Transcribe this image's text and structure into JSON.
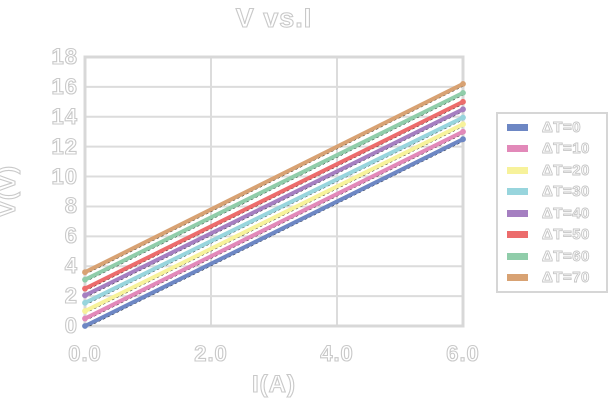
{
  "chart_data": {
    "type": "line",
    "title": "V vs.I",
    "xlabel": "I(A)",
    "ylabel": "V(V)",
    "xlim": [
      0,
      6
    ],
    "ylim": [
      0,
      18
    ],
    "x": [
      0,
      6
    ],
    "x_tick_labels": [
      "0.0",
      "2.0",
      "4.0",
      "6.0"
    ],
    "x_tick_values": [
      0,
      2,
      4,
      6
    ],
    "y_tick_labels": [
      "0",
      "2",
      "4",
      "6",
      "8",
      "10",
      "12",
      "14",
      "16",
      "18"
    ],
    "y_tick_values": [
      0,
      2,
      4,
      6,
      8,
      10,
      12,
      14,
      16,
      18
    ],
    "grid": true,
    "legend_position": "right",
    "series": [
      {
        "name": "ΔT=0",
        "color": "#6d87c4",
        "values": [
          0.0,
          12.5
        ]
      },
      {
        "name": "ΔT=10",
        "color": "#e289b9",
        "values": [
          0.5,
          13.0
        ]
      },
      {
        "name": "ΔT=20",
        "color": "#f7f29b",
        "values": [
          1.0,
          13.5
        ]
      },
      {
        "name": "ΔT=30",
        "color": "#98d5dd",
        "values": [
          1.55,
          13.95
        ]
      },
      {
        "name": "ΔT=40",
        "color": "#a57fc1",
        "values": [
          2.05,
          14.5
        ]
      },
      {
        "name": "ΔT=50",
        "color": "#ec6c6c",
        "values": [
          2.5,
          15.0
        ]
      },
      {
        "name": "ΔT=60",
        "color": "#90cdaa",
        "values": [
          3.1,
          15.6
        ]
      },
      {
        "name": "ΔT=70",
        "color": "#d8a273",
        "values": [
          3.6,
          16.2
        ]
      }
    ],
    "trendline": {
      "style": "dotted",
      "color": "#000000"
    }
  },
  "colors": {
    "background": "#ffffff",
    "gridline": "#dcdcdc",
    "plot_border": "#d8d8d8",
    "text_outline": "#c9c9c9",
    "legend_border": "#d6d6d6"
  }
}
